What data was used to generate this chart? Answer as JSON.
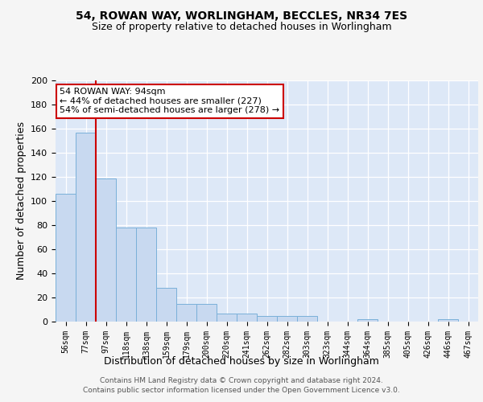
{
  "title1": "54, ROWAN WAY, WORLINGHAM, BECCLES, NR34 7ES",
  "title2": "Size of property relative to detached houses in Worlingham",
  "xlabel": "Distribution of detached houses by size in Worlingham",
  "ylabel": "Number of detached properties",
  "bar_labels": [
    "56sqm",
    "77sqm",
    "97sqm",
    "118sqm",
    "138sqm",
    "159sqm",
    "179sqm",
    "200sqm",
    "220sqm",
    "241sqm",
    "262sqm",
    "282sqm",
    "303sqm",
    "323sqm",
    "344sqm",
    "364sqm",
    "385sqm",
    "405sqm",
    "426sqm",
    "446sqm",
    "467sqm"
  ],
  "bar_values": [
    106,
    157,
    119,
    78,
    78,
    28,
    15,
    15,
    7,
    7,
    5,
    5,
    5,
    0,
    0,
    2,
    0,
    0,
    0,
    2,
    0
  ],
  "bar_color": "#c8d9f0",
  "bar_edge_color": "#7ab0d9",
  "red_line_x": 1.5,
  "annotation_line1": "54 ROWAN WAY: 94sqm",
  "annotation_line2": "← 44% of detached houses are smaller (227)",
  "annotation_line3": "54% of semi-detached houses are larger (278) →",
  "annotation_box_facecolor": "#ffffff",
  "annotation_border_color": "#cc0000",
  "red_line_color": "#cc0000",
  "footer1": "Contains HM Land Registry data © Crown copyright and database right 2024.",
  "footer2": "Contains public sector information licensed under the Open Government Licence v3.0.",
  "ylim": [
    0,
    200
  ],
  "yticks": [
    0,
    20,
    40,
    60,
    80,
    100,
    120,
    140,
    160,
    180,
    200
  ],
  "plot_bg_color": "#dde8f7",
  "fig_bg_color": "#f5f5f5",
  "grid_color": "#ffffff",
  "title1_fontsize": 10,
  "title2_fontsize": 9,
  "ylabel_fontsize": 9,
  "xlabel_fontsize": 9,
  "tick_fontsize": 8,
  "xtick_fontsize": 7,
  "annotation_fontsize": 8,
  "footer_fontsize": 6.5
}
